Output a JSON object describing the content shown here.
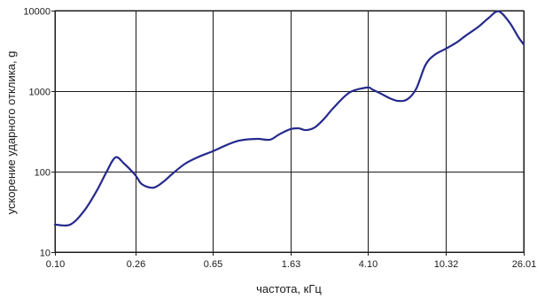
{
  "chart_data": {
    "type": "line",
    "title": "",
    "xlabel": "частота, кГц",
    "ylabel": "ускорение ударного отклика, g",
    "x_scale": "log",
    "y_scale": "log",
    "xlim": [
      0.1,
      26.01
    ],
    "ylim": [
      10,
      10000
    ],
    "x_ticks": [
      "0.10",
      "0.26",
      "0.65",
      "1.63",
      "4.10",
      "10.32",
      "26.01"
    ],
    "y_ticks": [
      "10",
      "100",
      "1000",
      "10000"
    ],
    "grid": true,
    "legend": "none",
    "series": [
      {
        "color": "#262a8c",
        "x": [
          0.1,
          0.12,
          0.142,
          0.165,
          0.184,
          0.205,
          0.227,
          0.26,
          0.28,
          0.32,
          0.36,
          0.405,
          0.47,
          0.555,
          0.65,
          0.76,
          0.89,
          1.1,
          1.28,
          1.43,
          1.63,
          1.8,
          1.96,
          2.18,
          2.42,
          2.69,
          3.14,
          3.48,
          4.1,
          4.31,
          4.78,
          5.31,
          5.89,
          6.56,
          7.28,
          8.1,
          9.0,
          10.32,
          11.7,
          13.1,
          15.2,
          17.2,
          19.3,
          21.9,
          24.4,
          26.01
        ],
        "y": [
          22,
          22,
          33,
          59,
          98,
          150,
          126,
          90,
          70,
          63,
          74,
          95,
          126,
          154,
          179,
          212,
          243,
          255,
          249,
          290,
          336,
          345,
          328,
          354,
          445,
          600,
          880,
          1020,
          1110,
          1050,
          930,
          815,
          755,
          795,
          1080,
          2100,
          2800,
          3360,
          4000,
          4900,
          6300,
          8150,
          9800,
          7200,
          4700,
          3800
        ]
      }
    ]
  }
}
